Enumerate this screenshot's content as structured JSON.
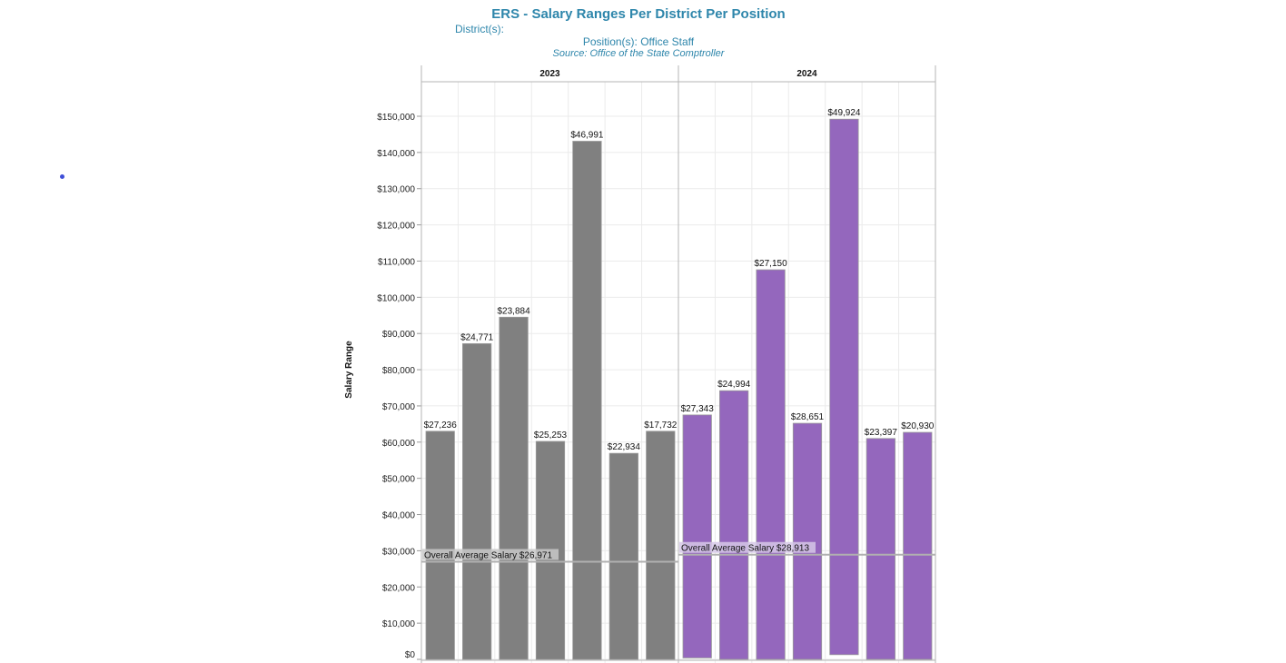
{
  "header": {
    "title": "ERS - Salary Ranges Per District Per Position",
    "district_label": "District(s):",
    "position_label": "Position(s): Office Staff",
    "source_label": "Source: Office of the State Comptroller"
  },
  "colors": {
    "title": "#2e86ab",
    "series_2023": "#808080",
    "series_2024": "#9467bd",
    "grid": "#ebebeb",
    "avg_line": "#b0b0b0",
    "marker_dot": "#3f4fd8"
  },
  "chart_data": {
    "type": "bar",
    "subtype": "floating-range-bar",
    "title": "ERS - Salary Ranges Per District Per Position",
    "xlabel": "",
    "ylabel": "Salary Range",
    "ylim": [
      0,
      150000
    ],
    "yticks": [
      0,
      10000,
      20000,
      30000,
      40000,
      50000,
      60000,
      70000,
      80000,
      90000,
      100000,
      110000,
      120000,
      130000,
      140000,
      150000
    ],
    "ytick_labels": [
      "$0",
      "$10,000",
      "$20,000",
      "$30,000",
      "$40,000",
      "$50,000",
      "$60,000",
      "$70,000",
      "$80,000",
      "$90,000",
      "$100,000",
      "$110,000",
      "$120,000",
      "$130,000",
      "$140,000",
      "$150,000"
    ],
    "grid": true,
    "legend": "none",
    "facets": [
      {
        "name": "2023",
        "color": "#808080",
        "bars": [
          {
            "low": 0,
            "high": 63000,
            "label": "$27,236"
          },
          {
            "low": 0,
            "high": 87200,
            "label": "$24,771"
          },
          {
            "low": 0,
            "high": 94500,
            "label": "$23,884"
          },
          {
            "low": 0,
            "high": 60200,
            "label": "$25,253"
          },
          {
            "low": 0,
            "high": 143100,
            "label": "$46,991"
          },
          {
            "low": 0,
            "high": 56900,
            "label": "$22,934"
          },
          {
            "low": 0,
            "high": 63000,
            "label": "$17,732"
          }
        ],
        "average": 26971,
        "average_label": "Overall Average Salary $26,971"
      },
      {
        "name": "2024",
        "color": "#9467bd",
        "bars": [
          {
            "low": 400,
            "high": 67500,
            "label": "$27,343"
          },
          {
            "low": 0,
            "high": 74200,
            "label": "$24,994"
          },
          {
            "low": 0,
            "high": 107600,
            "label": "$27,150"
          },
          {
            "low": 0,
            "high": 65200,
            "label": "$28,651"
          },
          {
            "low": 1300,
            "high": 149200,
            "label": "$49,924"
          },
          {
            "low": 0,
            "high": 61000,
            "label": "$23,397"
          },
          {
            "low": 0,
            "high": 62700,
            "label": "$20,930"
          }
        ],
        "average": 28913,
        "average_label": "Overall Average Salary $28,913"
      }
    ]
  }
}
